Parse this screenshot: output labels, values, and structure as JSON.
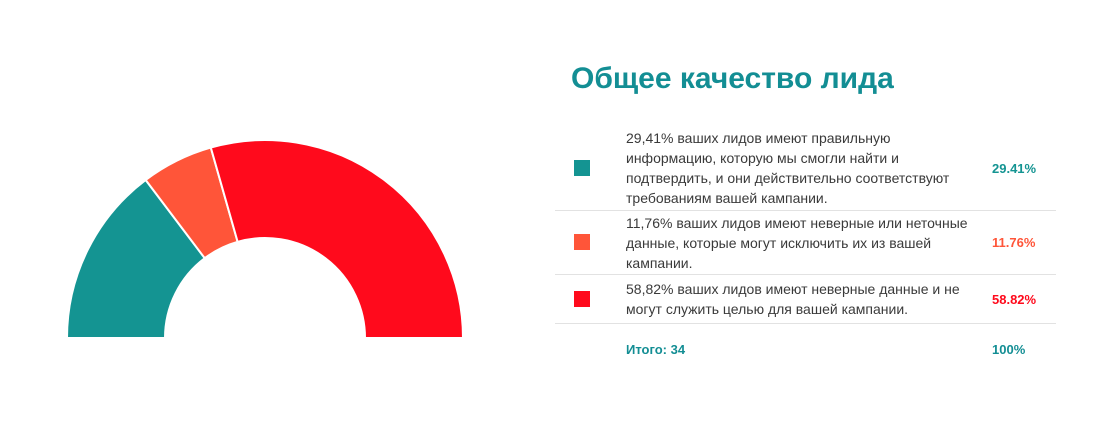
{
  "colors": {
    "accent": "#138e94",
    "teal": "#149492",
    "orange": "#ff5539",
    "red": "#ff0a1c"
  },
  "panel": {
    "title": "Общее качество лида",
    "total_label": "Итого: 34",
    "total_percent": "100%"
  },
  "chart_data": {
    "type": "pie",
    "variant": "semi-donut",
    "categories": [
      "29,41% ваших лидов имеют правильную информацию, которую мы смогли найти и подтвердить, и они действительно соответствуют требованиям вашей кампании.",
      "11,76% ваших лидов имеют неверные или неточные данные, которые могут исключить их из вашей кампании.",
      "58,82% ваших лидов имеют неверные данные и не могут служить целью для вашей кампании."
    ],
    "values": [
      29.41,
      11.76,
      58.82
    ],
    "value_labels": [
      "29.41%",
      "11.76%",
      "58.82%"
    ],
    "colors": [
      "#149492",
      "#ff5539",
      "#ff0a1c"
    ],
    "legend_position": "right"
  }
}
